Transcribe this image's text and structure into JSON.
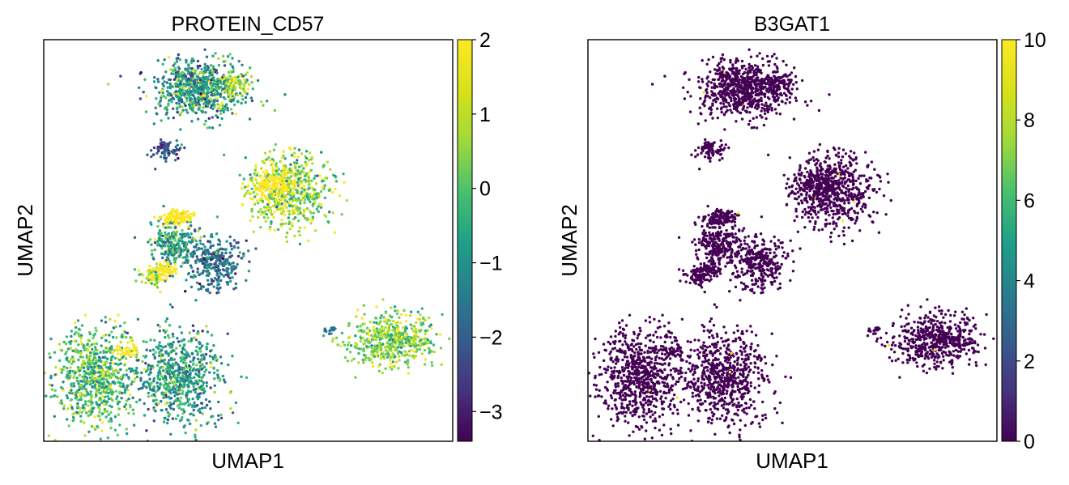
{
  "chart_data": [
    {
      "type": "scatter",
      "title": "PROTEIN_CD57",
      "xlabel": "UMAP1",
      "ylabel": "UMAP2",
      "colorbar": {
        "colormap": "viridis",
        "range": [
          -3.4,
          2.0
        ],
        "ticks": [
          2,
          1,
          0,
          -1,
          -2,
          -3
        ],
        "tick_labels": [
          "2",
          "1",
          "0",
          "−1",
          "−2",
          "−3"
        ]
      },
      "grid": false,
      "legend": "none",
      "xticks": [],
      "yticks": []
    },
    {
      "type": "scatter",
      "title": "B3GAT1",
      "xlabel": "UMAP1",
      "ylabel": "UMAP2",
      "colorbar": {
        "colormap": "viridis",
        "range": [
          0,
          10
        ],
        "ticks": [
          10,
          8,
          6,
          4,
          2,
          0
        ],
        "tick_labels": [
          "10",
          "8",
          "6",
          "4",
          "2",
          "0"
        ]
      },
      "grid": false,
      "legend": "none",
      "xticks": [],
      "yticks": []
    }
  ],
  "colors": {
    "viridis_low": "#440154",
    "viridis_mid": "#21918c",
    "viridis_high": "#fde725",
    "frame": "#000000",
    "background": "#ffffff"
  }
}
